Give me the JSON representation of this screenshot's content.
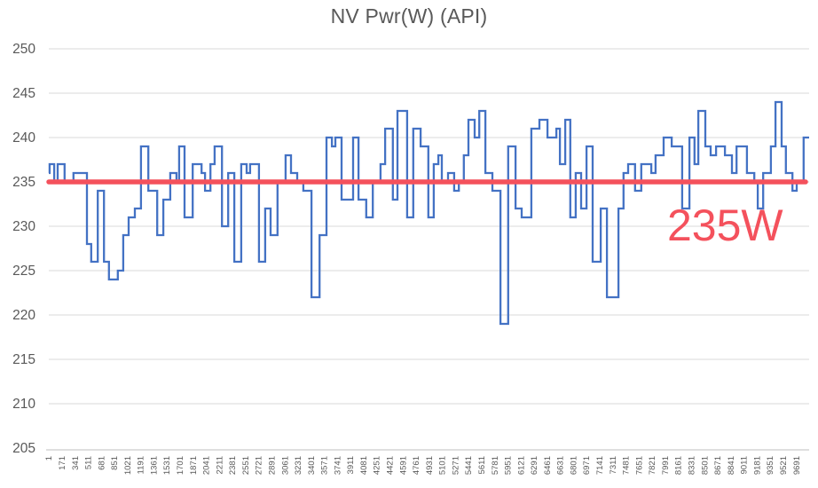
{
  "chart": {
    "title": "NV Pwr(W) (API)",
    "annotation_label": "235W",
    "colors": {
      "series_line": "#4472c4",
      "reference_line": "#f4515c",
      "annotation_text": "#f4515c",
      "gridline": "#d9d9d9",
      "axis_line": "#bfbfbf",
      "tick_text": "#595959",
      "title_text": "#595959",
      "background": "#ffffff"
    }
  },
  "chart_data": {
    "type": "line",
    "subtype": "step",
    "title": "NV Pwr(W) (API)",
    "xlabel": "",
    "ylabel": "",
    "grid": "horizontal",
    "legend": "none",
    "ylim": [
      205,
      250
    ],
    "y_ticks": [
      205,
      210,
      215,
      220,
      225,
      230,
      235,
      240,
      245,
      250
    ],
    "x_tick_labels": [
      "1",
      "171",
      "341",
      "511",
      "681",
      "851",
      "1021",
      "1191",
      "1361",
      "1531",
      "1701",
      "1871",
      "2041",
      "2211",
      "2381",
      "2551",
      "2721",
      "2891",
      "3061",
      "3231",
      "3401",
      "3571",
      "3741",
      "3911",
      "4081",
      "4251",
      "4421",
      "4591",
      "4761",
      "4931",
      "5101",
      "5271",
      "5441",
      "5611",
      "5781",
      "5951",
      "6121",
      "6291",
      "6461",
      "6631",
      "6801",
      "6971",
      "7141",
      "7311",
      "7481",
      "7651",
      "7821",
      "7991",
      "8161",
      "8331",
      "8501",
      "8671",
      "8841",
      "9011",
      "9181",
      "9351",
      "9521",
      "9691"
    ],
    "x_tick_step": 170,
    "x_range": [
      0,
      9856
    ],
    "reference_line": {
      "value": 235,
      "label": "235W"
    },
    "series": [
      {
        "name": "NV Pwr(W) (API)",
        "unit": "W",
        "steps": [
          [
            0,
            236
          ],
          [
            10,
            237
          ],
          [
            70,
            235
          ],
          [
            115,
            237
          ],
          [
            205,
            235
          ],
          [
            320,
            236
          ],
          [
            495,
            228
          ],
          [
            550,
            226
          ],
          [
            635,
            234
          ],
          [
            715,
            226
          ],
          [
            780,
            224
          ],
          [
            895,
            225
          ],
          [
            965,
            229
          ],
          [
            1035,
            231
          ],
          [
            1115,
            232
          ],
          [
            1195,
            239
          ],
          [
            1290,
            234
          ],
          [
            1405,
            229
          ],
          [
            1485,
            233
          ],
          [
            1575,
            236
          ],
          [
            1655,
            235
          ],
          [
            1690,
            239
          ],
          [
            1760,
            231
          ],
          [
            1865,
            237
          ],
          [
            1980,
            236
          ],
          [
            2025,
            234
          ],
          [
            2095,
            237
          ],
          [
            2150,
            239
          ],
          [
            2245,
            230
          ],
          [
            2325,
            236
          ],
          [
            2405,
            226
          ],
          [
            2495,
            237
          ],
          [
            2565,
            236
          ],
          [
            2610,
            237
          ],
          [
            2725,
            226
          ],
          [
            2805,
            232
          ],
          [
            2875,
            229
          ],
          [
            2965,
            235
          ],
          [
            3070,
            238
          ],
          [
            3140,
            236
          ],
          [
            3220,
            235
          ],
          [
            3300,
            234
          ],
          [
            3405,
            222
          ],
          [
            3510,
            229
          ],
          [
            3600,
            240
          ],
          [
            3670,
            239
          ],
          [
            3715,
            240
          ],
          [
            3795,
            233
          ],
          [
            3945,
            240
          ],
          [
            4015,
            233
          ],
          [
            4115,
            231
          ],
          [
            4200,
            235
          ],
          [
            4300,
            237
          ],
          [
            4360,
            241
          ],
          [
            4460,
            233
          ],
          [
            4520,
            243
          ],
          [
            4645,
            231
          ],
          [
            4725,
            241
          ],
          [
            4820,
            239
          ],
          [
            4920,
            231
          ],
          [
            4990,
            237
          ],
          [
            5050,
            238
          ],
          [
            5095,
            235
          ],
          [
            5175,
            236
          ],
          [
            5255,
            234
          ],
          [
            5315,
            235
          ],
          [
            5380,
            238
          ],
          [
            5440,
            242
          ],
          [
            5520,
            240
          ],
          [
            5580,
            243
          ],
          [
            5660,
            236
          ],
          [
            5750,
            234
          ],
          [
            5855,
            219
          ],
          [
            5955,
            239
          ],
          [
            6050,
            232
          ],
          [
            6130,
            231
          ],
          [
            6255,
            241
          ],
          [
            6360,
            242
          ],
          [
            6465,
            240
          ],
          [
            6580,
            241
          ],
          [
            6625,
            237
          ],
          [
            6695,
            242
          ],
          [
            6760,
            231
          ],
          [
            6830,
            236
          ],
          [
            6900,
            232
          ],
          [
            6970,
            239
          ],
          [
            7050,
            226
          ],
          [
            7155,
            232
          ],
          [
            7235,
            222
          ],
          [
            7385,
            232
          ],
          [
            7450,
            236
          ],
          [
            7510,
            237
          ],
          [
            7600,
            234
          ],
          [
            7680,
            237
          ],
          [
            7810,
            236
          ],
          [
            7865,
            238
          ],
          [
            7970,
            240
          ],
          [
            8075,
            239
          ],
          [
            8210,
            232
          ],
          [
            8305,
            240
          ],
          [
            8370,
            237
          ],
          [
            8420,
            243
          ],
          [
            8510,
            239
          ],
          [
            8580,
            238
          ],
          [
            8650,
            239
          ],
          [
            8765,
            238
          ],
          [
            8855,
            236
          ],
          [
            8915,
            239
          ],
          [
            9050,
            236
          ],
          [
            9145,
            235
          ],
          [
            9190,
            232
          ],
          [
            9260,
            236
          ],
          [
            9360,
            239
          ],
          [
            9420,
            244
          ],
          [
            9500,
            239
          ],
          [
            9555,
            236
          ],
          [
            9640,
            234
          ],
          [
            9695,
            235
          ],
          [
            9785,
            240
          ]
        ]
      }
    ]
  }
}
